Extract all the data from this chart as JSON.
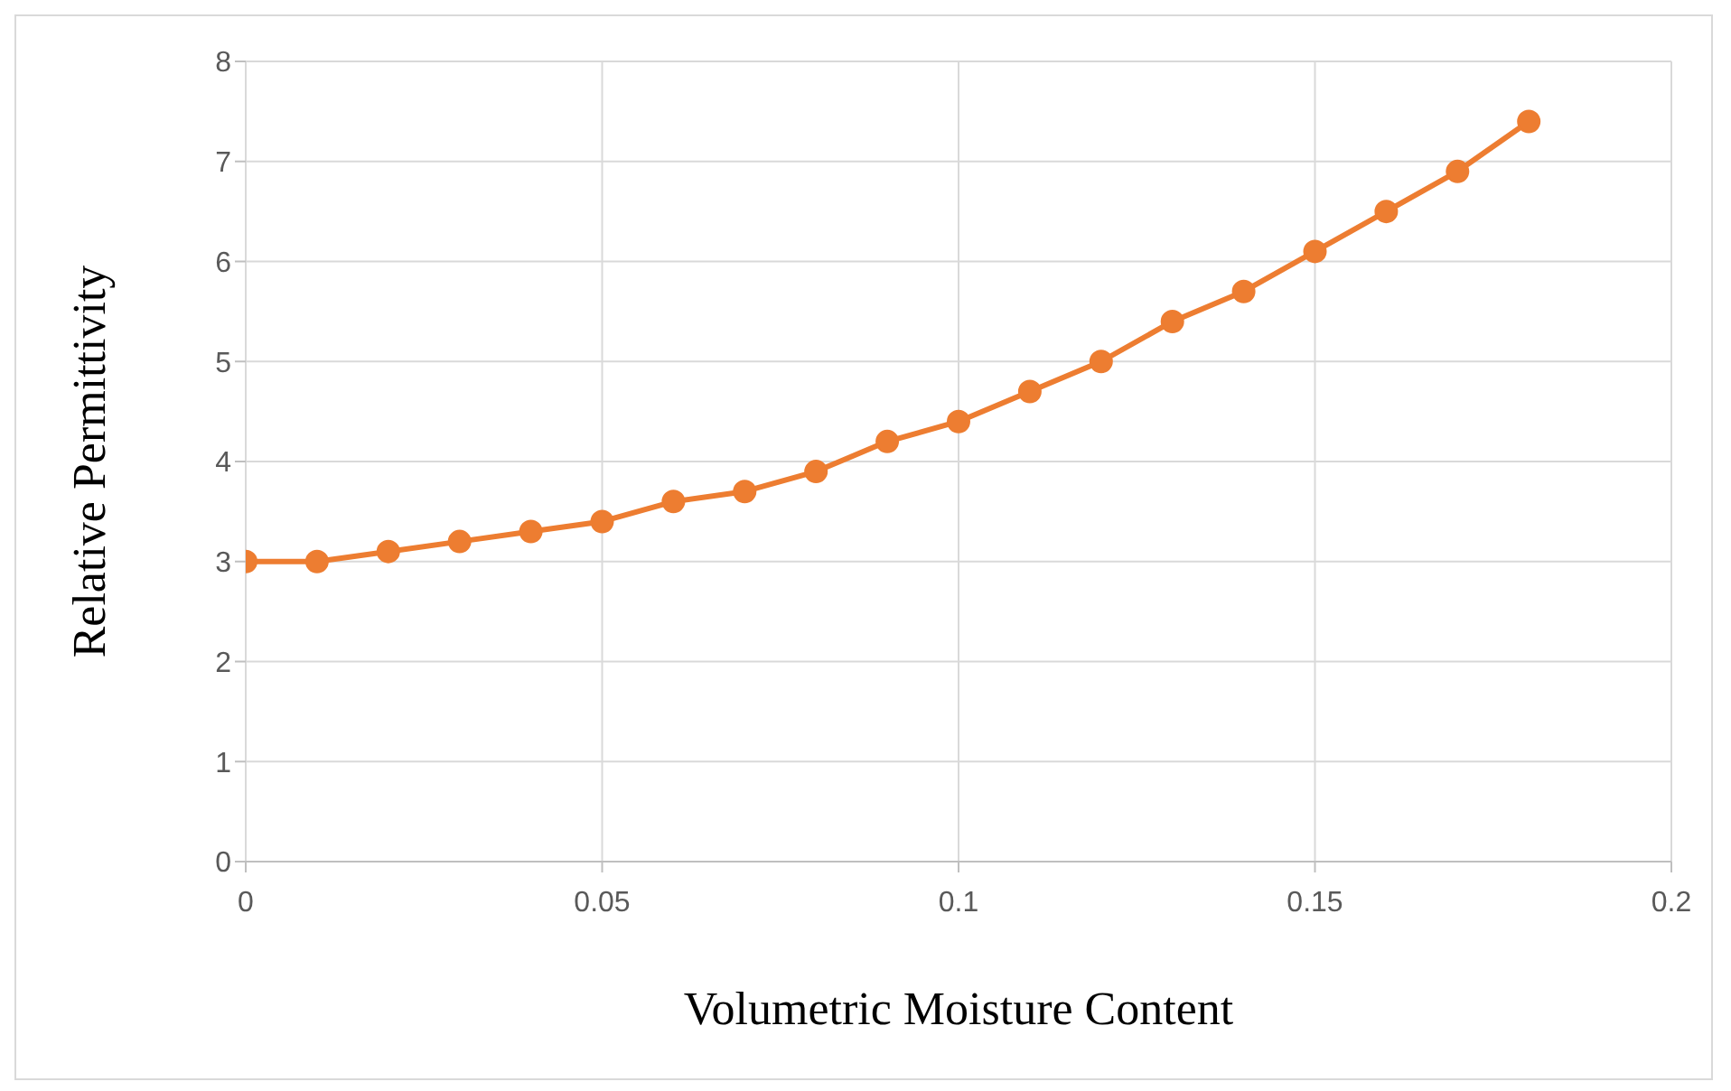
{
  "chart_data": {
    "type": "line",
    "xlabel": "Volumetric Moisture Content",
    "ylabel": "Relative Permittivity",
    "x": [
      0,
      0.01,
      0.02,
      0.03,
      0.04,
      0.05,
      0.06,
      0.07,
      0.08,
      0.09,
      0.1,
      0.11,
      0.12,
      0.13,
      0.14,
      0.15,
      0.16,
      0.17,
      0.18
    ],
    "series": [
      {
        "color": "#ed7d31",
        "values": [
          3,
          3,
          3.1,
          3.2,
          3.3,
          3.4,
          3.6,
          3.7,
          3.9,
          4.2,
          4.4,
          4.7,
          5,
          5.4,
          5.7,
          6.1,
          6.5,
          6.9,
          7.4
        ]
      }
    ],
    "xlim": [
      0,
      0.2
    ],
    "xticks": [
      0,
      0.05,
      0.1,
      0.15,
      0.2
    ],
    "ylim": [
      0,
      8
    ],
    "yticks": [
      0,
      1,
      2,
      3,
      4,
      5,
      6,
      7,
      8
    ],
    "grid": true,
    "legend": false,
    "marker": "circle",
    "line_style": "solid"
  }
}
